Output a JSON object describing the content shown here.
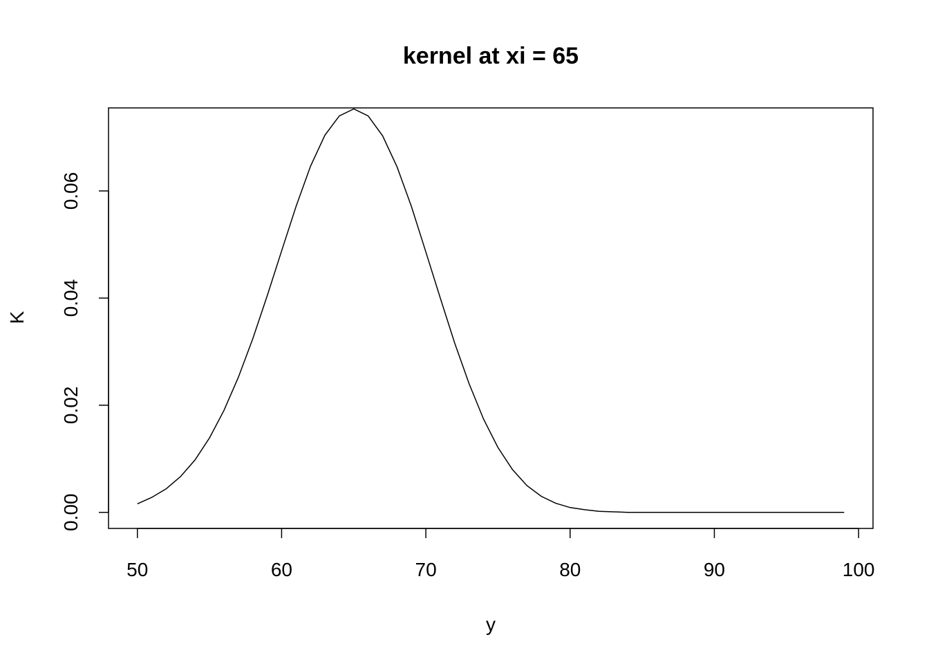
{
  "chart_data": {
    "type": "line",
    "title": "kernel at xi = 65",
    "xlabel": "y",
    "ylabel": "K",
    "xlim": [
      48,
      101
    ],
    "ylim": [
      -0.003,
      0.0755
    ],
    "x_ticks": [
      50,
      60,
      70,
      80,
      90,
      100
    ],
    "x_tick_labels": [
      "50",
      "60",
      "70",
      "80",
      "90",
      "100"
    ],
    "y_ticks": [
      0.0,
      0.02,
      0.04,
      0.06
    ],
    "y_tick_labels": [
      "0.00",
      "0.02",
      "0.04",
      "0.06"
    ],
    "grid": false,
    "series": [
      {
        "color": "#000000",
        "x": [
          50,
          51,
          52,
          53,
          54,
          55,
          56,
          57,
          58,
          59,
          60,
          61,
          62,
          63,
          64,
          65,
          66,
          67,
          68,
          69,
          70,
          71,
          72,
          73,
          74,
          75,
          76,
          77,
          78,
          79,
          80,
          81,
          82,
          83,
          84,
          85,
          86,
          87,
          88,
          89,
          90,
          91,
          92,
          93,
          94,
          95,
          96,
          97,
          98,
          99
        ],
        "y": [
          0.0016,
          0.0028,
          0.0044,
          0.0067,
          0.0098,
          0.0139,
          0.019,
          0.0252,
          0.0324,
          0.0404,
          0.0488,
          0.0571,
          0.0646,
          0.0704,
          0.074,
          0.0753,
          0.074,
          0.0703,
          0.0645,
          0.0571,
          0.0486,
          0.04,
          0.0316,
          0.024,
          0.0174,
          0.0121,
          0.008,
          0.005,
          0.003,
          0.0017,
          0.0009,
          0.0005,
          0.0002,
          0.0001,
          0.0,
          0.0,
          0.0,
          0.0,
          0.0,
          0.0,
          0.0,
          0.0,
          0.0,
          0.0,
          0.0,
          0.0,
          0.0,
          0.0,
          0.0,
          0.0
        ]
      }
    ]
  }
}
